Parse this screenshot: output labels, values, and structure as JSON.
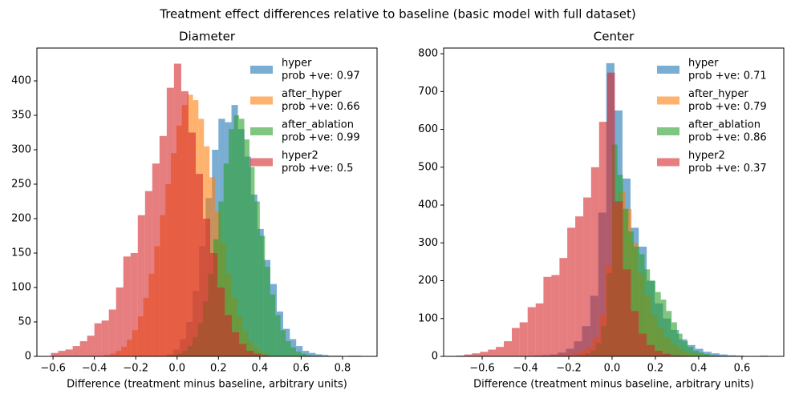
{
  "title": "Treatment effect differences relative to baseline (basic model with full dataset)",
  "chart_data": [
    {
      "type": "histogram",
      "title": "Diameter",
      "xlabel": "Difference (treatment minus baseline, arbitrary units)",
      "xlim": [
        -0.678,
        0.967
      ],
      "ylim": [
        0,
        447.7
      ],
      "xticks": [
        {
          "value": -0.6,
          "label": "−0.6"
        },
        {
          "value": -0.4,
          "label": "−0.4"
        },
        {
          "value": -0.2,
          "label": "−0.2"
        },
        {
          "value": 0,
          "label": "0.0"
        },
        {
          "value": 0.2,
          "label": "0.2"
        },
        {
          "value": 0.4,
          "label": "0.4"
        },
        {
          "value": 0.6,
          "label": "0.6"
        },
        {
          "value": 0.8,
          "label": "0.8"
        }
      ],
      "yticks": [
        0,
        50,
        100,
        150,
        200,
        250,
        300,
        350,
        400
      ],
      "legend": "upper right",
      "opacity": 0.6,
      "series": [
        {
          "name": "hyper",
          "note": "prob +ve: 0.97",
          "color": "#1f77b4",
          "bins": [
            -0.05,
            -0.019,
            0.013,
            0.044,
            0.075,
            0.107,
            0.138,
            0.169,
            0.2,
            0.232,
            0.263,
            0.294,
            0.326,
            0.357,
            0.388,
            0.419,
            0.451,
            0.482,
            0.513,
            0.545,
            0.576,
            0.607,
            0.638,
            0.67,
            0.701,
            0.732,
            0.764,
            0.795,
            0.826,
            0.857,
            0.889
          ],
          "values": [
            3,
            10,
            25,
            50,
            95,
            160,
            230,
            300,
            345,
            340,
            365,
            330,
            290,
            235,
            185,
            140,
            105,
            65,
            40,
            25,
            15,
            8,
            5,
            3,
            2,
            1,
            1,
            0,
            1,
            1
          ]
        },
        {
          "name": "after_hyper",
          "note": "prob +ve: 0.66",
          "color": "#ff7f0e",
          "bins": [
            -0.35,
            -0.323,
            -0.297,
            -0.27,
            -0.243,
            -0.217,
            -0.19,
            -0.163,
            -0.137,
            -0.11,
            -0.083,
            -0.057,
            -0.03,
            -0.003,
            0.023,
            0.05,
            0.077,
            0.103,
            0.13,
            0.157,
            0.183,
            0.21,
            0.237,
            0.263,
            0.29,
            0.317,
            0.343,
            0.37,
            0.397,
            0.423,
            0.45
          ],
          "values": [
            2,
            4,
            8,
            14,
            24,
            38,
            58,
            85,
            120,
            160,
            205,
            250,
            295,
            335,
            365,
            380,
            372,
            345,
            305,
            260,
            210,
            165,
            120,
            85,
            58,
            36,
            22,
            12,
            6,
            3
          ]
        },
        {
          "name": "after_ablation",
          "note": "prob +ve: 0.99",
          "color": "#2ca02c",
          "bins": [
            -0.05,
            -0.025,
            0,
            0.025,
            0.05,
            0.075,
            0.1,
            0.125,
            0.15,
            0.175,
            0.2,
            0.225,
            0.25,
            0.275,
            0.3,
            0.325,
            0.35,
            0.375,
            0.4,
            0.425,
            0.45,
            0.475,
            0.5,
            0.525,
            0.55,
            0.575,
            0.6,
            0.625,
            0.65,
            0.675,
            0.7
          ],
          "values": [
            1,
            2,
            4,
            8,
            15,
            28,
            48,
            80,
            120,
            170,
            225,
            280,
            330,
            350,
            345,
            315,
            275,
            225,
            175,
            130,
            90,
            60,
            38,
            22,
            13,
            7,
            4,
            2,
            1,
            1
          ]
        },
        {
          "name": "hyper2",
          "note": "prob +ve: 0.5",
          "color": "#d62728",
          "bins": [
            -0.61,
            -0.575,
            -0.54,
            -0.505,
            -0.47,
            -0.435,
            -0.4,
            -0.365,
            -0.33,
            -0.295,
            -0.26,
            -0.225,
            -0.19,
            -0.155,
            -0.12,
            -0.085,
            -0.05,
            -0.015,
            0.02,
            0.055,
            0.09,
            0.125,
            0.16,
            0.195,
            0.23,
            0.265,
            0.3,
            0.335,
            0.37,
            0.405,
            0.44
          ],
          "values": [
            5,
            8,
            10,
            15,
            22,
            30,
            48,
            52,
            68,
            100,
            145,
            150,
            205,
            240,
            280,
            320,
            390,
            425,
            385,
            325,
            265,
            200,
            150,
            100,
            60,
            35,
            18,
            8,
            4,
            2
          ]
        }
      ]
    },
    {
      "type": "histogram",
      "title": "Center",
      "xlabel": "Difference (treatment minus baseline, arbitrary units)",
      "xlim": [
        -0.778,
        0.793
      ],
      "ylim": [
        0,
        815
      ],
      "xticks": [
        {
          "value": -0.6,
          "label": "−0.6"
        },
        {
          "value": -0.4,
          "label": "−0.4"
        },
        {
          "value": -0.2,
          "label": "−0.2"
        },
        {
          "value": 0,
          "label": "0.0"
        },
        {
          "value": 0.2,
          "label": "0.2"
        },
        {
          "value": 0.4,
          "label": "0.4"
        },
        {
          "value": 0.6,
          "label": "0.6"
        }
      ],
      "yticks": [
        0,
        100,
        200,
        300,
        400,
        500,
        600,
        700,
        800
      ],
      "legend": "upper right",
      "opacity": 0.6,
      "series": [
        {
          "name": "hyper",
          "note": "prob +ve: 0.71",
          "color": "#1f77b4",
          "bins": [
            -0.4,
            -0.363,
            -0.325,
            -0.288,
            -0.251,
            -0.213,
            -0.176,
            -0.139,
            -0.101,
            -0.064,
            -0.027,
            0.011,
            0.048,
            0.085,
            0.123,
            0.16,
            0.197,
            0.235,
            0.272,
            0.309,
            0.347,
            0.384,
            0.421,
            0.459,
            0.496,
            0.533,
            0.571,
            0.608,
            0.645,
            0.683,
            0.72
          ],
          "values": [
            1,
            2,
            3,
            5,
            10,
            20,
            40,
            80,
            160,
            380,
            775,
            650,
            470,
            340,
            290,
            200,
            140,
            100,
            70,
            45,
            30,
            20,
            12,
            8,
            5,
            3,
            2,
            1,
            1,
            2
          ]
        },
        {
          "name": "after_hyper",
          "note": "prob +ve: 0.79",
          "color": "#ff7f0e",
          "bins": [
            -0.3,
            -0.27,
            -0.24,
            -0.21,
            -0.18,
            -0.15,
            -0.12,
            -0.09,
            -0.06,
            -0.03,
            0,
            0.03,
            0.06,
            0.09,
            0.12,
            0.15,
            0.18,
            0.21,
            0.24,
            0.27,
            0.3,
            0.33,
            0.36,
            0.39,
            0.42,
            0.45,
            0.48,
            0.51,
            0.54,
            0.57,
            0.6
          ],
          "values": [
            1,
            2,
            3,
            5,
            8,
            15,
            25,
            50,
            110,
            240,
            400,
            435,
            390,
            300,
            220,
            160,
            110,
            75,
            50,
            32,
            20,
            12,
            8,
            5,
            3,
            2,
            1,
            1,
            1,
            1
          ]
        },
        {
          "name": "after_ablation",
          "note": "prob +ve: 0.86",
          "color": "#2ca02c",
          "bins": [
            -0.2,
            -0.175,
            -0.15,
            -0.125,
            -0.1,
            -0.075,
            -0.05,
            -0.025,
            0,
            0.025,
            0.05,
            0.075,
            0.1,
            0.125,
            0.15,
            0.175,
            0.2,
            0.225,
            0.25,
            0.275,
            0.3,
            0.325,
            0.35,
            0.375,
            0.4,
            0.425,
            0.45,
            0.475,
            0.5,
            0.525,
            0.55
          ],
          "values": [
            1,
            2,
            4,
            8,
            15,
            35,
            80,
            220,
            560,
            480,
            390,
            330,
            290,
            270,
            230,
            200,
            170,
            150,
            120,
            90,
            60,
            40,
            25,
            15,
            10,
            6,
            3,
            2,
            1,
            1
          ]
        },
        {
          "name": "hyper2",
          "note": "prob +ve: 0.37",
          "color": "#d62728",
          "bins": [
            -0.72,
            -0.683,
            -0.647,
            -0.61,
            -0.573,
            -0.537,
            -0.5,
            -0.463,
            -0.427,
            -0.39,
            -0.353,
            -0.317,
            -0.28,
            -0.243,
            -0.207,
            -0.17,
            -0.133,
            -0.097,
            -0.06,
            -0.023,
            0.013,
            0.05,
            0.087,
            0.123,
            0.16,
            0.197,
            0.233,
            0.27,
            0.307,
            0.343,
            0.38
          ],
          "values": [
            2,
            5,
            8,
            12,
            18,
            25,
            40,
            75,
            90,
            130,
            140,
            210,
            215,
            260,
            340,
            370,
            420,
            500,
            620,
            750,
            410,
            230,
            120,
            60,
            30,
            15,
            7,
            3,
            2,
            1
          ]
        }
      ]
    }
  ]
}
